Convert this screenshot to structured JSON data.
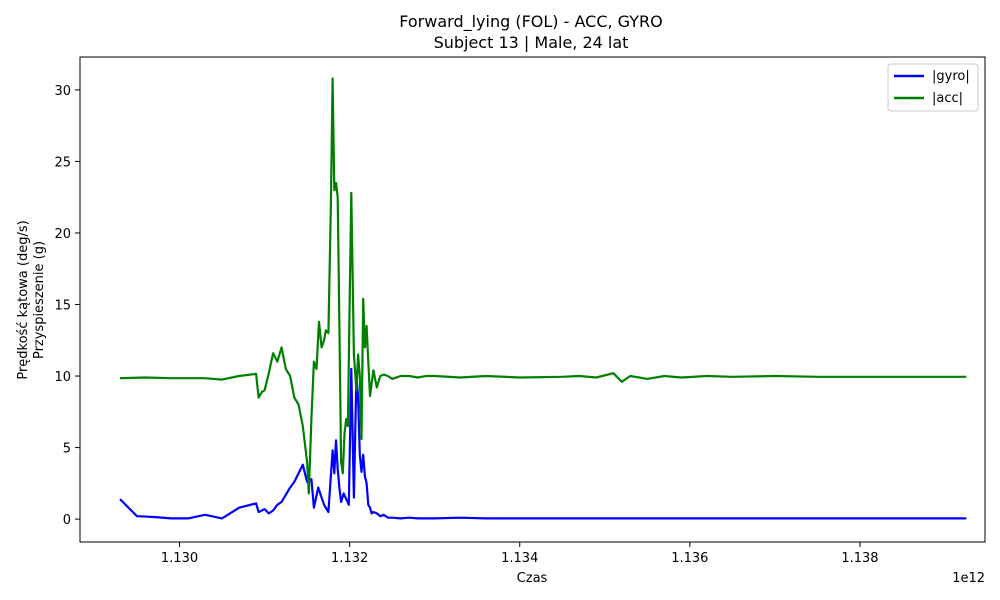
{
  "chart_data": {
    "type": "line",
    "title": "Forward_lying (FOL) - ACC, GYRO",
    "subtitle": "Subject 13 | Male, 24 lat",
    "xlabel": "Czas",
    "ylabel_line1": "Prędkość kątowa (deg/s)",
    "ylabel_line2": "Przyspieszenie (g)",
    "x_offset_label": "1e12",
    "xlim": [
      1.12883,
      1.13947
    ],
    "ylim": [
      -1.6,
      32.3
    ],
    "x_unit_scale": 1000000000000.0,
    "x_ticks": [
      1.13,
      1.132,
      1.134,
      1.136,
      1.138
    ],
    "x_tick_labels": [
      "1.130",
      "1.132",
      "1.134",
      "1.136",
      "1.138"
    ],
    "y_ticks": [
      0,
      5,
      10,
      15,
      20,
      25,
      30
    ],
    "y_tick_labels": [
      "0",
      "5",
      "10",
      "15",
      "20",
      "25",
      "30"
    ],
    "grid": false,
    "legend_position": "top-right",
    "series": [
      {
        "name": "|gyro|",
        "color": "#0000ff",
        "x": [
          1.1293,
          1.1295,
          1.1297,
          1.1299,
          1.1301,
          1.1303,
          1.1305,
          1.1307,
          1.1309,
          1.13093,
          1.13097,
          1.131,
          1.13105,
          1.1311,
          1.13115,
          1.1312,
          1.13125,
          1.1313,
          1.13135,
          1.1314,
          1.13145,
          1.1315,
          1.13155,
          1.13158,
          1.13163,
          1.1317,
          1.13175,
          1.1318,
          1.13182,
          1.13184,
          1.13186,
          1.13188,
          1.1319,
          1.13193,
          1.13196,
          1.13199,
          1.13202,
          1.13205,
          1.13208,
          1.1321,
          1.13212,
          1.13214,
          1.13216,
          1.13218,
          1.1322,
          1.13222,
          1.13224,
          1.13226,
          1.13228,
          1.13232,
          1.13236,
          1.1324,
          1.13245,
          1.1325,
          1.1326,
          1.1327,
          1.1328,
          1.133,
          1.1333,
          1.1336,
          1.134,
          1.1345,
          1.135,
          1.1355,
          1.136,
          1.1365,
          1.137,
          1.1375,
          1.138,
          1.1385,
          1.139,
          1.13925
        ],
        "values": [
          1.4,
          0.2,
          0.15,
          0.05,
          0.05,
          0.3,
          0.05,
          0.8,
          1.1,
          0.5,
          0.6,
          0.7,
          0.4,
          0.6,
          1.0,
          1.2,
          1.7,
          2.2,
          2.6,
          3.2,
          3.8,
          2.6,
          2.8,
          0.8,
          2.2,
          1.0,
          0.5,
          4.8,
          3.2,
          5.5,
          3.5,
          2.2,
          1.2,
          1.8,
          1.4,
          1.0,
          10.5,
          1.5,
          10.0,
          8.5,
          4.5,
          3.3,
          4.5,
          3.0,
          2.5,
          1.0,
          0.8,
          0.4,
          0.5,
          0.4,
          0.2,
          0.3,
          0.1,
          0.1,
          0.05,
          0.1,
          0.05,
          0.05,
          0.1,
          0.05,
          0.05,
          0.05,
          0.05,
          0.05,
          0.05,
          0.05,
          0.05,
          0.05,
          0.05,
          0.05,
          0.05,
          0.05
        ]
      },
      {
        "name": "|acc|",
        "color": "#008000",
        "x": [
          1.1293,
          1.1296,
          1.1299,
          1.1303,
          1.1305,
          1.1307,
          1.1309,
          1.13093,
          1.13097,
          1.131,
          1.13105,
          1.1311,
          1.13115,
          1.1312,
          1.13125,
          1.1313,
          1.13135,
          1.1314,
          1.13145,
          1.1315,
          1.13152,
          1.13155,
          1.13158,
          1.13161,
          1.13164,
          1.13167,
          1.1317,
          1.13172,
          1.13175,
          1.13178,
          1.1318,
          1.13182,
          1.13184,
          1.13186,
          1.13188,
          1.1319,
          1.13192,
          1.13194,
          1.13196,
          1.13198,
          1.132,
          1.13202,
          1.13205,
          1.13208,
          1.1321,
          1.13212,
          1.13214,
          1.13216,
          1.13218,
          1.1322,
          1.13222,
          1.13224,
          1.13226,
          1.13228,
          1.13232,
          1.13236,
          1.1324,
          1.13245,
          1.1325,
          1.1326,
          1.1327,
          1.1328,
          1.1329,
          1.133,
          1.1333,
          1.1336,
          1.134,
          1.1345,
          1.1347,
          1.1349,
          1.1351,
          1.1352,
          1.1353,
          1.1355,
          1.1357,
          1.1359,
          1.1362,
          1.1365,
          1.137,
          1.1375,
          1.138,
          1.1385,
          1.139,
          1.13925
        ],
        "values": [
          9.85,
          9.9,
          9.85,
          9.85,
          9.75,
          10.0,
          10.15,
          8.5,
          8.9,
          9.0,
          10.2,
          11.6,
          11.0,
          12.0,
          10.5,
          10.0,
          8.5,
          8.0,
          6.5,
          4.0,
          1.8,
          7.0,
          11.0,
          10.5,
          13.8,
          12.0,
          12.5,
          13.2,
          13.0,
          22.0,
          30.8,
          23.0,
          23.5,
          22.5,
          13.5,
          4.0,
          3.2,
          6.0,
          7.0,
          6.5,
          15.0,
          22.8,
          11.5,
          9.0,
          11.5,
          10.0,
          5.6,
          15.4,
          12.0,
          13.5,
          11.0,
          8.6,
          9.5,
          10.4,
          9.2,
          10.0,
          10.1,
          10.0,
          9.8,
          10.0,
          10.0,
          9.9,
          10.0,
          10.0,
          9.9,
          10.0,
          9.9,
          9.95,
          10.0,
          9.9,
          10.2,
          9.6,
          10.0,
          9.8,
          10.0,
          9.9,
          10.0,
          9.95,
          10.0,
          9.95,
          9.95,
          9.95,
          9.95,
          9.95
        ]
      }
    ]
  }
}
